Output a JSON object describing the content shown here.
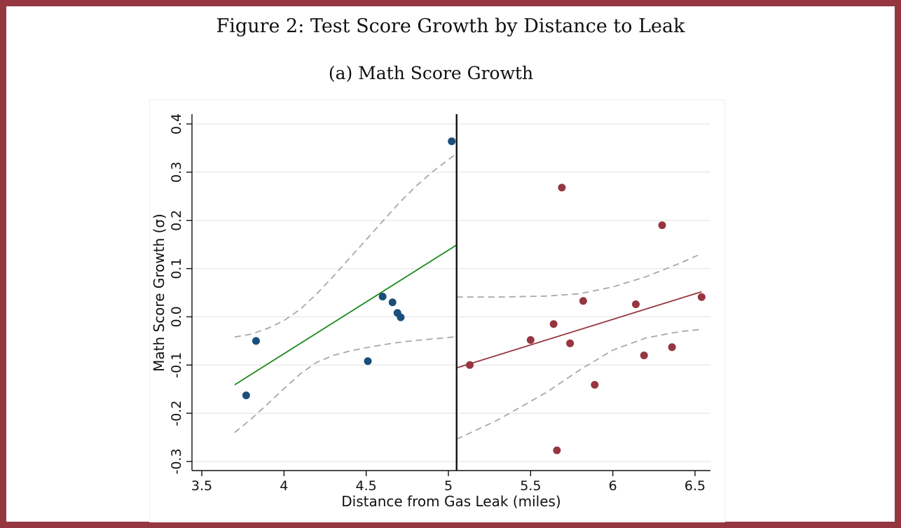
{
  "figure": {
    "title": "Figure 2: Test Score Growth by Distance to Leak",
    "subtitle": "(a) Math Score Growth"
  },
  "colors": {
    "frame": "#963640",
    "left_points": "#1b4f7a",
    "right_points": "#963640",
    "left_fit": "#1a8a1a",
    "right_fit": "#963640",
    "ci": "#a8a8a8",
    "cutoff": "#111111",
    "grid": "#e6e6e6"
  },
  "chart_data": {
    "type": "scatter",
    "xlabel": "Distance from Gas Leak (miles)",
    "ylabel": "Math Score Growth (σ)",
    "xlim": [
      3.5,
      6.5
    ],
    "ylim": [
      -0.3,
      0.4
    ],
    "xticks": [
      3.5,
      4,
      4.5,
      5,
      5.5,
      6,
      6.5
    ],
    "xtick_labels": [
      "3.5",
      "4",
      "4.5",
      "5",
      "5.5",
      "6",
      "6.5"
    ],
    "yticks": [
      -0.3,
      -0.2,
      -0.1,
      0.0,
      0.1,
      0.2,
      0.3,
      0.4
    ],
    "ytick_labels": [
      "-0.3",
      "-0.2",
      "-0.1",
      "0.0",
      "0.1",
      "0.2",
      "0.3",
      "0.4"
    ],
    "grid": true,
    "cutoff_x": 5.05,
    "series": [
      {
        "points": [
          [
            3.77,
            -0.163
          ],
          [
            3.83,
            -0.05
          ],
          [
            4.51,
            -0.092
          ],
          [
            4.6,
            0.042
          ],
          [
            4.66,
            0.03
          ],
          [
            4.69,
            0.008
          ],
          [
            4.71,
            -0.001
          ],
          [
            5.02,
            0.364
          ]
        ]
      },
      {
        "points": [
          [
            5.13,
            -0.1
          ],
          [
            5.5,
            -0.048
          ],
          [
            5.64,
            -0.015
          ],
          [
            5.66,
            -0.277
          ],
          [
            5.69,
            0.268
          ],
          [
            5.74,
            -0.055
          ],
          [
            5.82,
            0.033
          ],
          [
            5.89,
            -0.141
          ],
          [
            6.14,
            0.026
          ],
          [
            6.19,
            -0.08
          ],
          [
            6.3,
            0.19
          ],
          [
            6.36,
            -0.063
          ],
          [
            6.54,
            0.041
          ]
        ]
      }
    ],
    "fits": [
      {
        "x": [
          3.7,
          5.05
        ],
        "y": [
          -0.141,
          0.149
        ]
      },
      {
        "x": [
          5.05,
          6.54
        ],
        "y": [
          -0.106,
          0.052
        ]
      }
    ],
    "confidence_bands": [
      {
        "upper": [
          [
            3.7,
            -0.042
          ],
          [
            3.8,
            -0.036
          ],
          [
            3.9,
            -0.024
          ],
          [
            4.0,
            -0.008
          ],
          [
            4.1,
            0.016
          ],
          [
            4.2,
            0.048
          ],
          [
            4.3,
            0.084
          ],
          [
            4.4,
            0.122
          ],
          [
            4.5,
            0.16
          ],
          [
            4.6,
            0.198
          ],
          [
            4.7,
            0.236
          ],
          [
            4.8,
            0.27
          ],
          [
            4.9,
            0.3
          ],
          [
            5.0,
            0.326
          ],
          [
            5.05,
            0.339
          ]
        ],
        "lower": [
          [
            3.7,
            -0.24
          ],
          [
            3.8,
            -0.212
          ],
          [
            3.9,
            -0.181
          ],
          [
            4.0,
            -0.149
          ],
          [
            4.1,
            -0.118
          ],
          [
            4.2,
            -0.094
          ],
          [
            4.3,
            -0.08
          ],
          [
            4.4,
            -0.071
          ],
          [
            4.5,
            -0.064
          ],
          [
            4.6,
            -0.058
          ],
          [
            4.7,
            -0.053
          ],
          [
            4.8,
            -0.049
          ],
          [
            4.9,
            -0.046
          ],
          [
            5.0,
            -0.043
          ],
          [
            5.05,
            -0.041
          ]
        ]
      },
      {
        "upper": [
          [
            5.05,
            0.041
          ],
          [
            5.3,
            0.041
          ],
          [
            5.6,
            0.043
          ],
          [
            5.8,
            0.048
          ],
          [
            6.0,
            0.062
          ],
          [
            6.2,
            0.083
          ],
          [
            6.4,
            0.11
          ],
          [
            6.54,
            0.131
          ]
        ],
        "lower": [
          [
            5.05,
            -0.254
          ],
          [
            5.3,
            -0.214
          ],
          [
            5.6,
            -0.156
          ],
          [
            5.8,
            -0.11
          ],
          [
            6.0,
            -0.069
          ],
          [
            6.2,
            -0.044
          ],
          [
            6.4,
            -0.031
          ],
          [
            6.54,
            -0.026
          ]
        ]
      }
    ]
  }
}
